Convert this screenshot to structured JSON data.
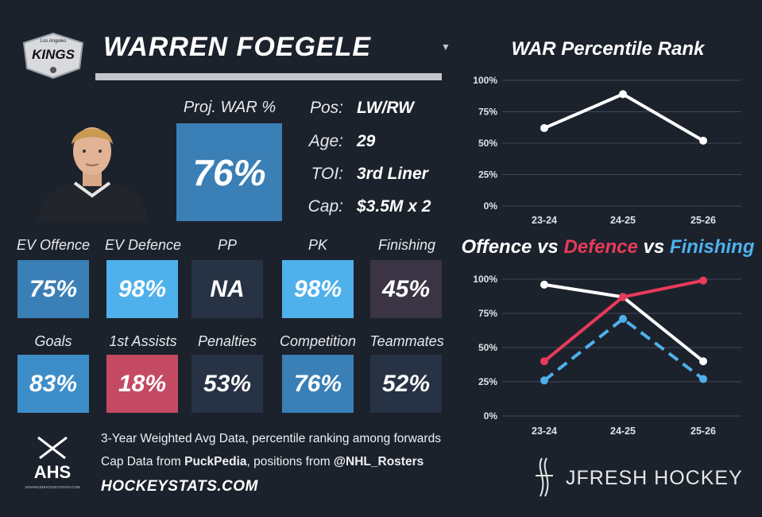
{
  "player": {
    "name": "WARREN FOEGELE",
    "team_logo": "KINGS",
    "team_logo_sub": "Los Angeles"
  },
  "projected_war": {
    "label": "Proj. WAR %",
    "value": "76%"
  },
  "info": [
    {
      "label": "Pos:",
      "value": "LW/RW"
    },
    {
      "label": "Age:",
      "value": "29"
    },
    {
      "label": "TOI:",
      "value": "3rd Liner"
    },
    {
      "label": "Cap:",
      "value": "$3.5M x 2"
    }
  ],
  "stats_row1": [
    {
      "label": "EV Offence",
      "value": "75%",
      "color": "#3a7fb6"
    },
    {
      "label": "EV Defence",
      "value": "98%",
      "color": "#4fb1ec"
    },
    {
      "label": "PP",
      "value": "NA",
      "color": "#273244"
    },
    {
      "label": "PK",
      "value": "98%",
      "color": "#4fb1ec"
    },
    {
      "label": "Finishing",
      "value": "45%",
      "color": "#3a3444"
    }
  ],
  "stats_row2": [
    {
      "label": "Goals",
      "value": "83%",
      "color": "#3d8dc9"
    },
    {
      "label": "1st Assists",
      "value": "18%",
      "color": "#c44a64"
    },
    {
      "label": "Penalties",
      "value": "53%",
      "color": "#273244"
    },
    {
      "label": "Competition",
      "value": "76%",
      "color": "#3a7fb6"
    },
    {
      "label": "Teammates",
      "value": "52%",
      "color": "#273244"
    }
  ],
  "footer": {
    "line1": "3-Year Weighted Avg Data, percentile ranking among forwards",
    "line2_prefix": "Cap Data from ",
    "line2_source": "PuckPedia",
    "line2_mid": ", positions from ",
    "line2_handle": "@NHL_Rosters",
    "site": "HOCKEYSTATS.COM",
    "ahs_logo": "AHS",
    "ahs_sub": "ADVANCEDHOCKEYSTATS.COM",
    "brand": "JFRESH HOCKEY"
  },
  "chart_data": [
    {
      "type": "line",
      "title": "WAR Percentile Rank",
      "categories": [
        "23-24",
        "24-25",
        "25-26"
      ],
      "y_ticks": [
        "0%",
        "25%",
        "50%",
        "75%",
        "100%"
      ],
      "ylim": [
        0,
        100
      ],
      "series": [
        {
          "name": "WAR",
          "values": [
            62,
            89,
            52
          ],
          "color": "#ffffff",
          "dashed": false
        }
      ]
    },
    {
      "type": "line",
      "title_parts": [
        {
          "text": "Offence",
          "color": "#ffffff"
        },
        {
          "text": " vs ",
          "color": "#ffffff"
        },
        {
          "text": "Defence",
          "color": "#e83a5a"
        },
        {
          "text": " vs ",
          "color": "#ffffff"
        },
        {
          "text": "Finishing",
          "color": "#4fb1ec"
        }
      ],
      "categories": [
        "23-24",
        "24-25",
        "25-26"
      ],
      "y_ticks": [
        "0%",
        "25%",
        "50%",
        "75%",
        "100%"
      ],
      "ylim": [
        0,
        100
      ],
      "series": [
        {
          "name": "Offence",
          "values": [
            96,
            87,
            40
          ],
          "color": "#ffffff",
          "dashed": false
        },
        {
          "name": "Defence",
          "values": [
            40,
            87,
            99
          ],
          "color": "#e83a5a",
          "dashed": false
        },
        {
          "name": "Finishing",
          "values": [
            26,
            71,
            27
          ],
          "color": "#4fb1ec",
          "dashed": true
        }
      ]
    }
  ]
}
